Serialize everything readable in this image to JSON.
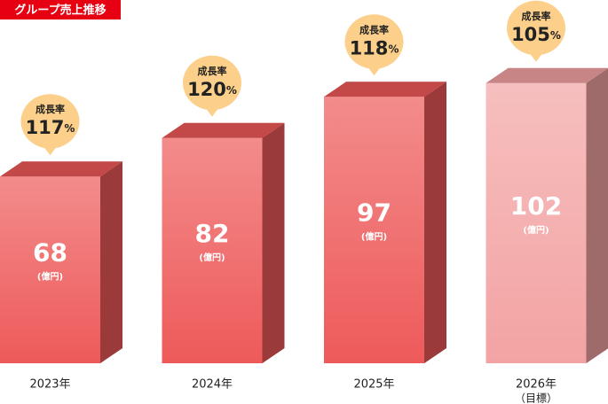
{
  "chart_data": {
    "type": "bar3d",
    "title": "グループ売上推移",
    "categories": [
      "2023年",
      "2024年",
      "2025年",
      "2026年"
    ],
    "category_notes": [
      null,
      null,
      null,
      "（目標）"
    ],
    "values": [
      68,
      82,
      97,
      102
    ],
    "value_unit": "(億円)",
    "colors": [
      "#ee5a5a",
      "#ee5a5a",
      "#ee5a5a",
      "#f3a3a3"
    ],
    "growth_label": "成長率",
    "growth_rates": [
      117,
      120,
      118,
      105
    ],
    "growth_unit": "%",
    "bubble_color": "#fcd08a"
  }
}
